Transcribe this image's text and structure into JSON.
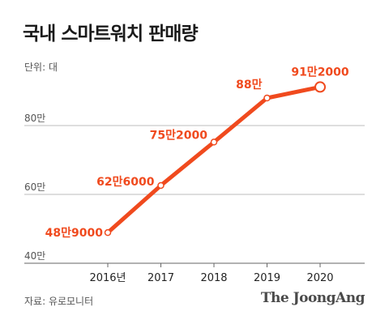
{
  "header": {
    "title": "국내 스마트워치 판매량",
    "unit": "단위: 대"
  },
  "footer": {
    "source": "자료: 유로모니터",
    "brand": "The JoongAng"
  },
  "colors": {
    "accent": "#f04a1e",
    "grid": "#bdbdbd"
  },
  "chart_data": {
    "type": "line",
    "title": "국내 스마트워치 판매량",
    "xlabel": "",
    "ylabel": "단위: 대",
    "x": [
      "2016년",
      "2017",
      "2018",
      "2019",
      "2020"
    ],
    "series": [
      {
        "values": [
          489000,
          626000,
          752000,
          880000,
          912000
        ],
        "labels": [
          "48만9000",
          "62만6000",
          "75만2000",
          "88만",
          "91만2000"
        ]
      }
    ],
    "ylim": [
      400000,
      1000000
    ],
    "yticks": [
      {
        "value": 400000,
        "label": "40만"
      },
      {
        "value": 600000,
        "label": "60만"
      },
      {
        "value": 800000,
        "label": "80만"
      }
    ],
    "grid": true,
    "legend": "none"
  }
}
